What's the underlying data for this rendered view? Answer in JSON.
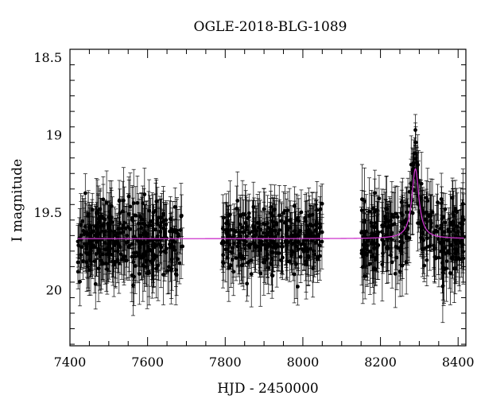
{
  "chart_data": {
    "type": "scatter",
    "title": "OGLE-2018-BLG-1089",
    "xlabel": "HJD - 2450000",
    "ylabel": "I magnitude",
    "xlim": [
      7400,
      8420
    ],
    "ylim": [
      20.36,
      18.45
    ],
    "y_inverted": true,
    "x_ticks": [
      7400,
      7600,
      7800,
      8000,
      8200,
      8400
    ],
    "y_ticks": [
      18.5,
      19,
      19.5,
      20
    ],
    "x_tick_labels": [
      "7400",
      "7600",
      "7800",
      "8000",
      "8200",
      "8400"
    ],
    "y_tick_labels": [
      "18.5",
      "19",
      "19.5",
      "20"
    ],
    "grid": false,
    "legend": "none",
    "series": [
      {
        "kind": "points-with-errorbars",
        "color": "#000000",
        "seasons": [
          {
            "x_range": [
              7420,
              7690
            ],
            "mag_median": 19.68,
            "mag_scatter": 0.16,
            "err_typical": 0.17,
            "n_points": 330
          },
          {
            "x_range": [
              7790,
              8050
            ],
            "mag_median": 19.68,
            "mag_scatter": 0.14,
            "err_typical": 0.16,
            "n_points": 300
          },
          {
            "x_range": [
              8150,
              8415
            ],
            "mag_median": 19.68,
            "mag_scatter": 0.15,
            "err_typical": 0.17,
            "n_points": 310
          }
        ],
        "event_points": [
          {
            "x": 8283,
            "y": 19.35
          },
          {
            "x": 8286,
            "y": 19.22
          },
          {
            "x": 8288,
            "y": 19.12
          },
          {
            "x": 8290,
            "y": 18.97
          },
          {
            "x": 8291,
            "y": 19.05
          },
          {
            "x": 8293,
            "y": 19.18
          },
          {
            "x": 8295,
            "y": 19.3
          },
          {
            "x": 8298,
            "y": 19.45
          }
        ]
      },
      {
        "kind": "model-curve",
        "color": "#cc33cc",
        "baseline_mag": 19.67,
        "peak_time": 8290,
        "peak_mag": 19.22,
        "timescale": 11
      }
    ]
  }
}
